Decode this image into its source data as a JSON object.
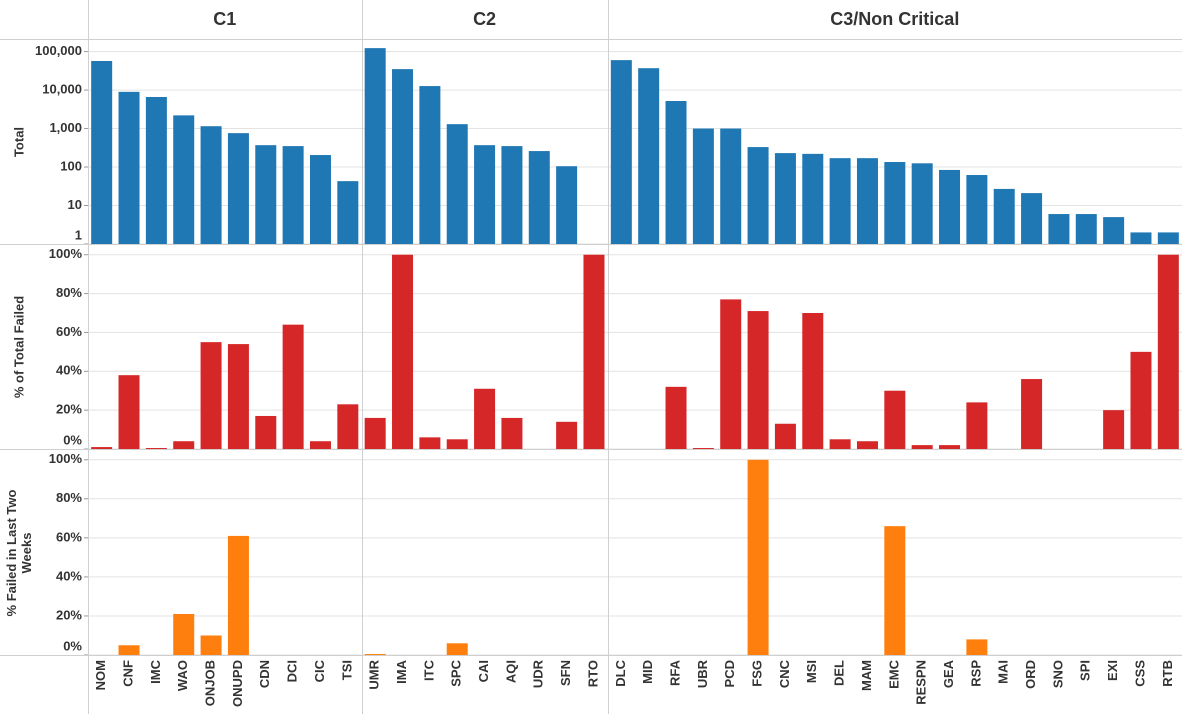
{
  "columns": [
    {
      "title": "C1",
      "categories": [
        "NOM",
        "CNF",
        "IMC",
        "WAO",
        "ONJOB",
        "ONUPD",
        "CDN",
        "DCI",
        "CIC",
        "TSI"
      ]
    },
    {
      "title": "C2",
      "categories": [
        "UMR",
        "IMA",
        "ITC",
        "SPC",
        "CAI",
        "AQI",
        "UDR",
        "SFN",
        "RTO"
      ]
    },
    {
      "title": "C3/Non Critical",
      "categories": [
        "DLC",
        "MID",
        "RFA",
        "UBR",
        "PCD",
        "FSG",
        "CNC",
        "MSI",
        "DEL",
        "MAM",
        "EMC",
        "RESPN",
        "GEA",
        "RSP",
        "MAI",
        "ORD",
        "SNO",
        "SPI",
        "EXI",
        "CSS",
        "RTB"
      ]
    }
  ],
  "chart_data": [
    {
      "type": "bar",
      "y_label": "Total",
      "color": "#1f77b4",
      "log_scale": true,
      "grid": true,
      "ylim": [
        1,
        200000
      ],
      "yticks": [
        {
          "value": 100000,
          "label": "100,000"
        },
        {
          "value": 10000,
          "label": "10,000"
        },
        {
          "value": 1000,
          "label": "1,000"
        },
        100,
        10,
        1
      ],
      "values": [
        [
          57000,
          9000,
          6600,
          2200,
          1150,
          760,
          370,
          350,
          205,
          43
        ],
        [
          123000,
          35000,
          12700,
          1300,
          370,
          350,
          260,
          105,
          1
        ],
        [
          60000,
          37000,
          5200,
          1000,
          1000,
          330,
          230,
          220,
          170,
          170,
          135,
          125,
          84,
          62,
          27,
          21,
          6,
          6,
          5,
          2,
          2
        ]
      ]
    },
    {
      "type": "bar",
      "y_label": "% of Total Failed",
      "color": "#d62728",
      "log_scale": false,
      "grid": true,
      "ylim": [
        0,
        105
      ],
      "yticks": [
        {
          "value": 100,
          "label": "100%"
        },
        {
          "value": 80,
          "label": "80%"
        },
        {
          "value": 60,
          "label": "60%"
        },
        {
          "value": 40,
          "label": "40%"
        },
        {
          "value": 20,
          "label": "20%"
        },
        {
          "value": 0,
          "label": "0%"
        }
      ],
      "values": [
        [
          1,
          38,
          0.5,
          4,
          55,
          54,
          17,
          64,
          4,
          23
        ],
        [
          16,
          100,
          6,
          5,
          31,
          16,
          0,
          14,
          100
        ],
        [
          0,
          0,
          32,
          0.5,
          77,
          71,
          13,
          70,
          5,
          4,
          30,
          2,
          2,
          24,
          0,
          36,
          0,
          0,
          20,
          50,
          100
        ]
      ]
    },
    {
      "type": "bar",
      "y_label": "% Failed in Last Two Weeks",
      "color": "#ff7f0e",
      "log_scale": false,
      "grid": true,
      "ylim": [
        0,
        105
      ],
      "yticks": [
        {
          "value": 100,
          "label": "100%"
        },
        {
          "value": 80,
          "label": "80%"
        },
        {
          "value": 60,
          "label": "60%"
        },
        {
          "value": 40,
          "label": "40%"
        },
        {
          "value": 20,
          "label": "20%"
        },
        {
          "value": 0,
          "label": "0%"
        }
      ],
      "values": [
        [
          0,
          5,
          0,
          21,
          10,
          61,
          0,
          0,
          0,
          0
        ],
        [
          0.5,
          0,
          0,
          6,
          0,
          0,
          0,
          0,
          0
        ],
        [
          0,
          0,
          0,
          0,
          0,
          100,
          0,
          0,
          0,
          0,
          66,
          0,
          0,
          8,
          0,
          0,
          0,
          0,
          0,
          0,
          0
        ]
      ]
    }
  ]
}
